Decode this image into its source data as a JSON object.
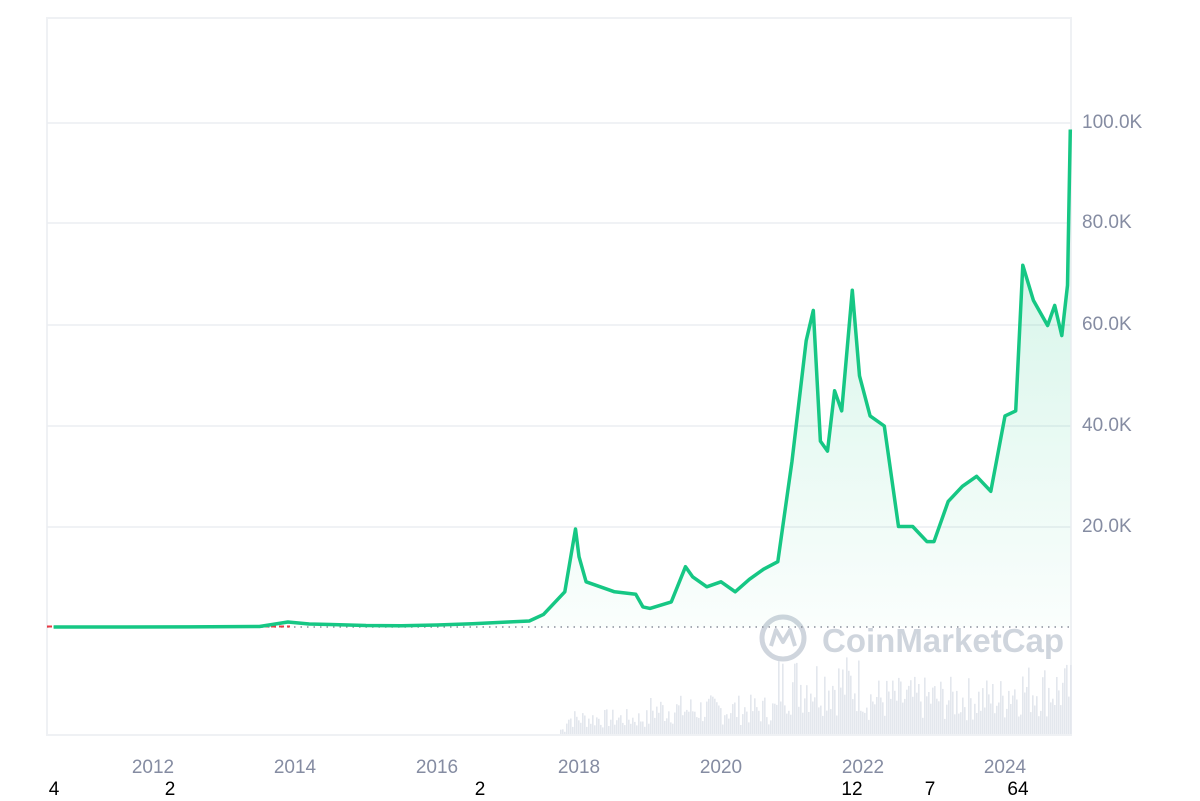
{
  "chart_data": {
    "type": "line",
    "title": "",
    "xlabel": "",
    "ylabel": "",
    "series": [
      {
        "name": "Price (USD)",
        "color": "#16c784",
        "x": [
          2010.6,
          2011.5,
          2012.5,
          2013.5,
          2013.9,
          2014.2,
          2014.5,
          2015.0,
          2015.5,
          2016.0,
          2016.5,
          2017.0,
          2017.3,
          2017.5,
          2017.8,
          2017.95,
          2018.0,
          2018.1,
          2018.3,
          2018.5,
          2018.8,
          2018.9,
          2019.0,
          2019.3,
          2019.5,
          2019.6,
          2019.8,
          2020.0,
          2020.2,
          2020.4,
          2020.6,
          2020.8,
          2021.0,
          2021.1,
          2021.2,
          2021.3,
          2021.4,
          2021.5,
          2021.6,
          2021.7,
          2021.85,
          2021.95,
          2022.1,
          2022.3,
          2022.4,
          2022.5,
          2022.7,
          2022.9,
          2023.0,
          2023.2,
          2023.4,
          2023.6,
          2023.8,
          2024.0,
          2024.15,
          2024.25,
          2024.4,
          2024.6,
          2024.7,
          2024.8,
          2024.88,
          2024.92
        ],
        "values": [
          0,
          5,
          10,
          100,
          1000,
          600,
          500,
          300,
          250,
          400,
          650,
          1000,
          1200,
          2500,
          7000,
          19500,
          14000,
          9000,
          8000,
          7000,
          6500,
          4000,
          3700,
          5000,
          12000,
          10000,
          8000,
          9000,
          7000,
          9500,
          11500,
          13000,
          33000,
          45000,
          57000,
          63000,
          37000,
          35000,
          47000,
          43000,
          67000,
          50000,
          42000,
          40000,
          30000,
          20000,
          20000,
          17000,
          17000,
          25000,
          28000,
          30000,
          27000,
          42000,
          43000,
          72000,
          65000,
          60000,
          64000,
          58000,
          68000,
          99000
        ]
      },
      {
        "name": "Volume",
        "color": "#e3e7ed",
        "style": "bars"
      }
    ],
    "yticks": [
      "20.0K",
      "40.0K",
      "60.0K",
      "80.0K",
      "100.0K"
    ],
    "ytick_values": [
      20000,
      40000,
      60000,
      80000,
      100000
    ],
    "xticks": [
      "2012",
      "2014",
      "2016",
      "2018",
      "2020",
      "2022",
      "2024"
    ],
    "ylim": [
      0,
      120000
    ],
    "xlim": [
      2010.5,
      2024.95
    ],
    "grid": true,
    "legend": "none",
    "baseline": "dotted at 0",
    "watermark": "CoinMarketCap"
  },
  "axis": {
    "y": [
      "100.0K",
      "80.0K",
      "60.0K",
      "40.0K",
      "20.0K"
    ],
    "x": [
      "2012",
      "2014",
      "2016",
      "2018",
      "2020",
      "2022",
      "2024"
    ]
  },
  "watermark": "CoinMarketCap",
  "extra_labels": [
    "4",
    "2",
    "2",
    "12",
    "7",
    "64"
  ]
}
